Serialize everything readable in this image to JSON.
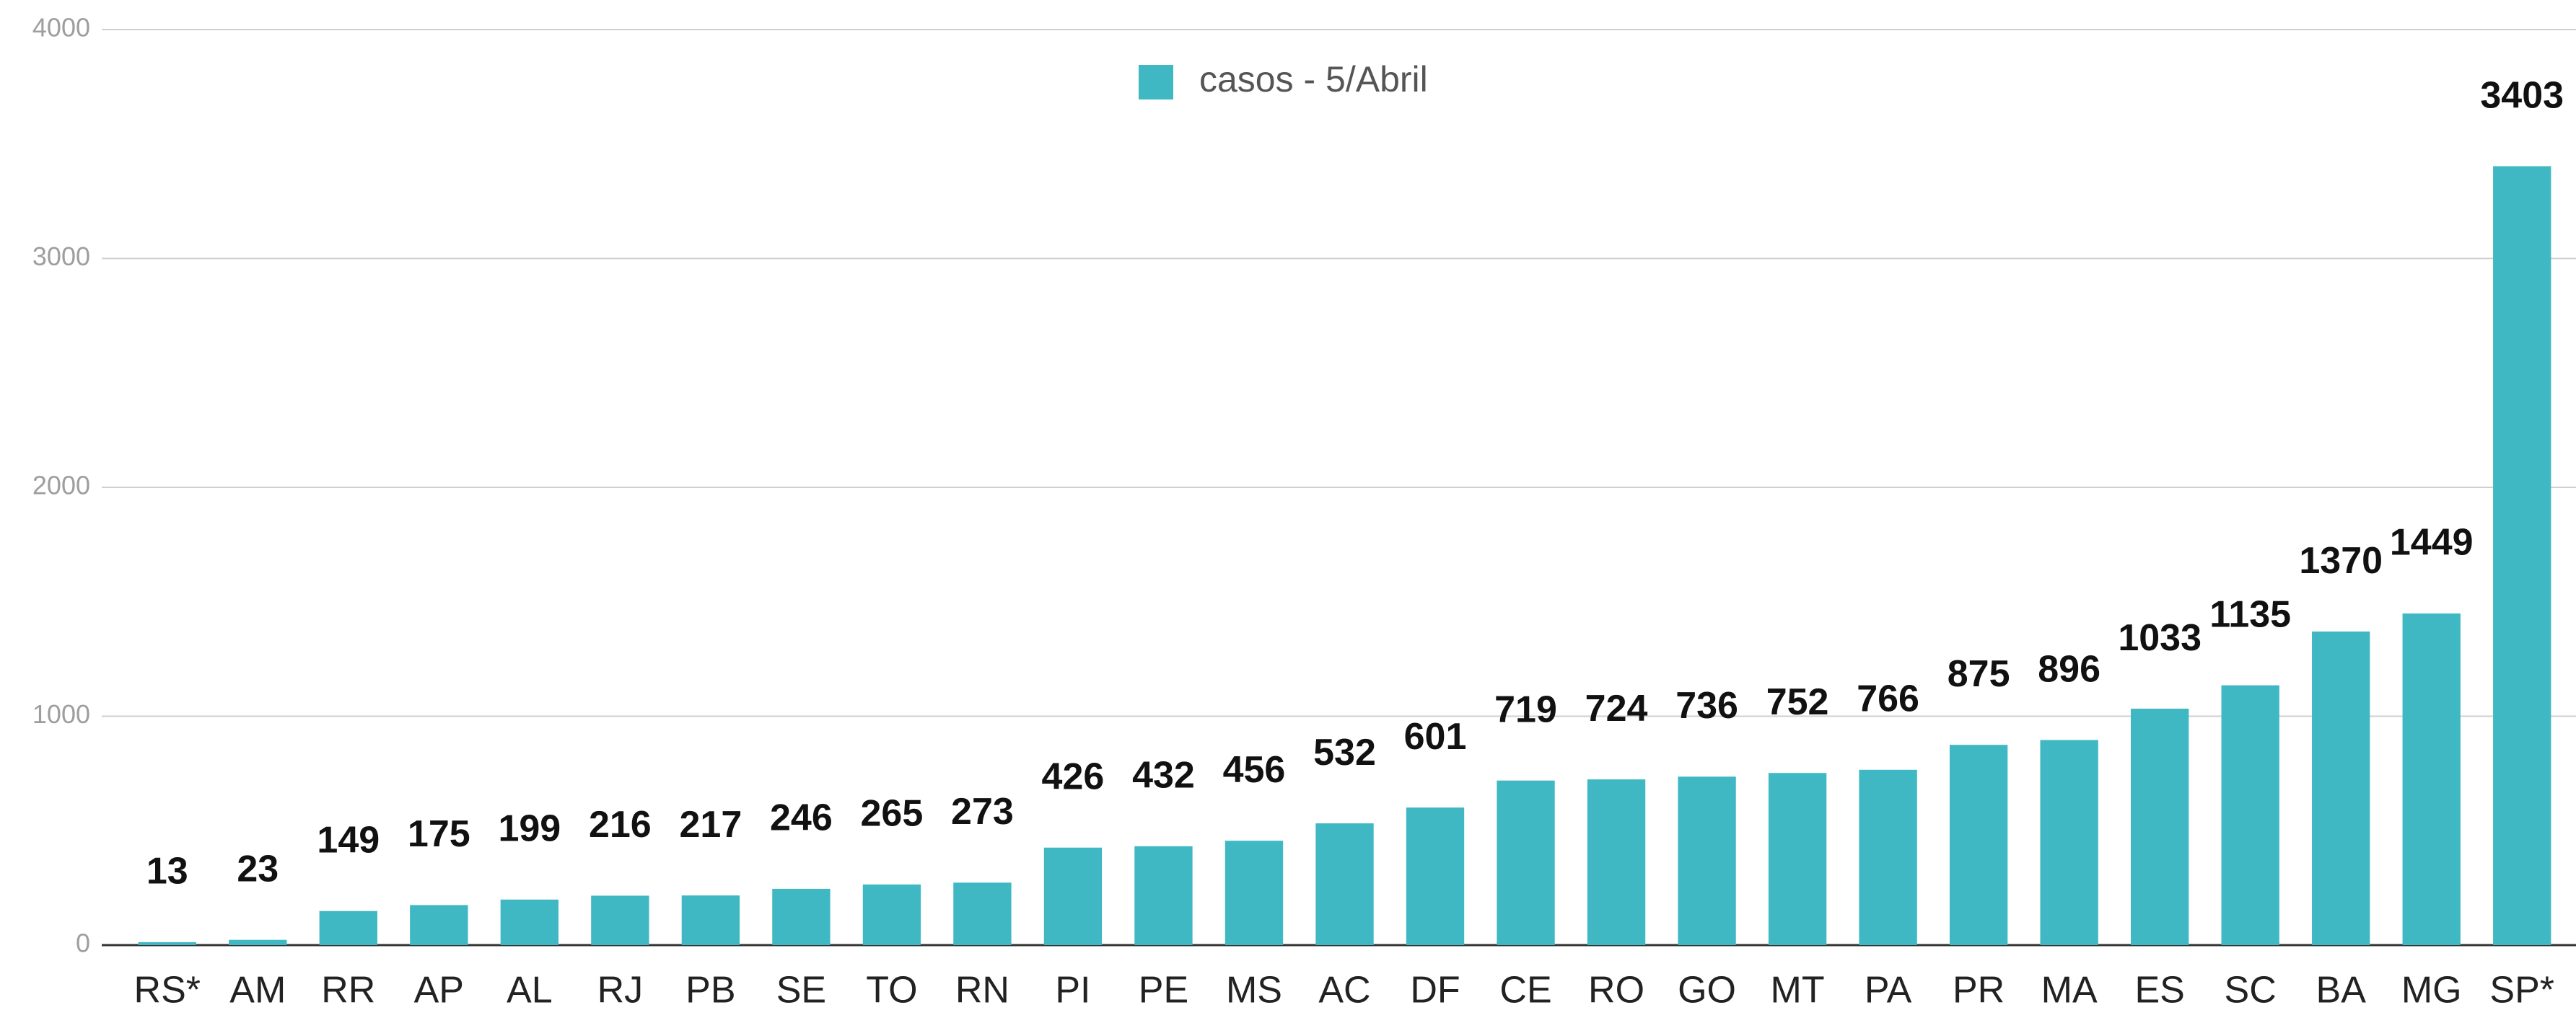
{
  "chart_data": {
    "type": "bar",
    "categories": [
      "RS*",
      "AM",
      "RR",
      "AP",
      "AL",
      "RJ",
      "PB",
      "SE",
      "TO",
      "RN",
      "PI",
      "PE",
      "MS",
      "AC",
      "DF",
      "CE",
      "RO",
      "GO",
      "MT",
      "PA",
      "PR",
      "MA",
      "ES",
      "SC",
      "BA",
      "MG",
      "SP*"
    ],
    "series": [
      {
        "name": "casos - 5/Abril",
        "color": "#3fb8c4",
        "values": [
          13,
          23,
          149,
          175,
          199,
          216,
          217,
          246,
          265,
          273,
          426,
          432,
          456,
          532,
          601,
          719,
          724,
          736,
          752,
          766,
          875,
          896,
          1033,
          1135,
          1370,
          1449,
          3403
        ]
      }
    ],
    "ylim": [
      0,
      4000
    ],
    "yticks": [
      0,
      1000,
      2000,
      3000,
      4000
    ],
    "grid": true,
    "legend": "top"
  }
}
